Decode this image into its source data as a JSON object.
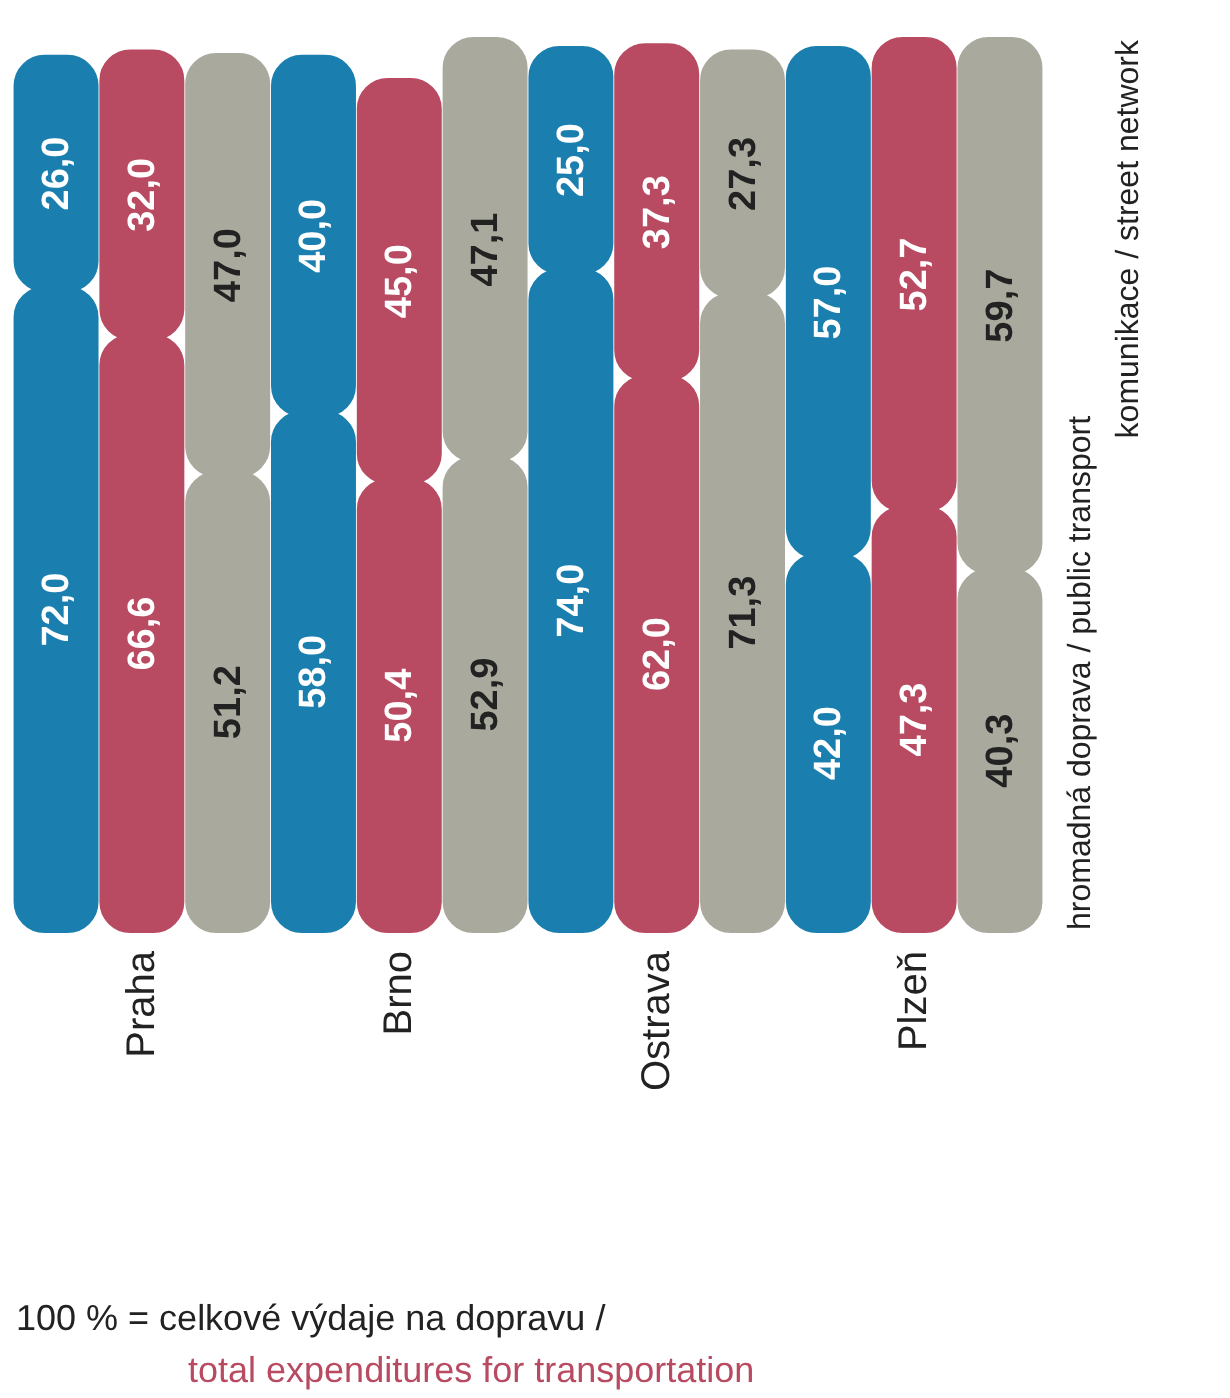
{
  "chart_data": {
    "type": "bar",
    "stacked": true,
    "categories": [
      null,
      "Praha",
      null,
      null,
      "Brno",
      null,
      null,
      "Ostrava",
      null,
      null,
      "Plzeň",
      null
    ],
    "series": [
      {
        "name": "hromadná doprava / public transport",
        "colors": [
          "#1a7fae",
          "#b84a62",
          "#a9a99d",
          "#1a7fae",
          "#b84a62",
          "#a9a99d",
          "#1a7fae",
          "#b84a62",
          "#a9a99d",
          "#1a7fae",
          "#b84a62",
          "#a9a99d"
        ],
        "values": [
          72.0,
          66.6,
          51.2,
          58.0,
          50.4,
          52.9,
          74.0,
          62.0,
          71.3,
          42.0,
          47.3,
          40.3
        ],
        "value_labels": [
          "72,0",
          "66,6",
          "51,2",
          "58,0",
          "50,4",
          "52,9",
          "74,0",
          "62,0",
          "71,3",
          "42,0",
          "47,3",
          "40,3"
        ]
      },
      {
        "name": "komunikace / street network",
        "colors": [
          "#1a7fae",
          "#b84a62",
          "#a9a99d",
          "#1a7fae",
          "#b84a62",
          "#a9a99d",
          "#1a7fae",
          "#b84a62",
          "#a9a99d",
          "#1a7fae",
          "#b84a62",
          "#a9a99d"
        ],
        "values": [
          26.0,
          32.0,
          47.0,
          40.0,
          45.0,
          47.1,
          25.0,
          37.3,
          27.3,
          57.0,
          52.7,
          59.7
        ],
        "value_labels": [
          "26,0",
          "32,0",
          "47,0",
          "40,0",
          "45,0",
          "47,1",
          "25,0",
          "37,3",
          "27,3",
          "57,0",
          "52,7",
          "59,7"
        ]
      }
    ],
    "ylim": [
      0,
      100
    ],
    "tick_labels": "x",
    "legend": "right",
    "annotations": [
      "100 % = celkové výdaje na dopravu /",
      "total expenditures for transportation"
    ]
  }
}
